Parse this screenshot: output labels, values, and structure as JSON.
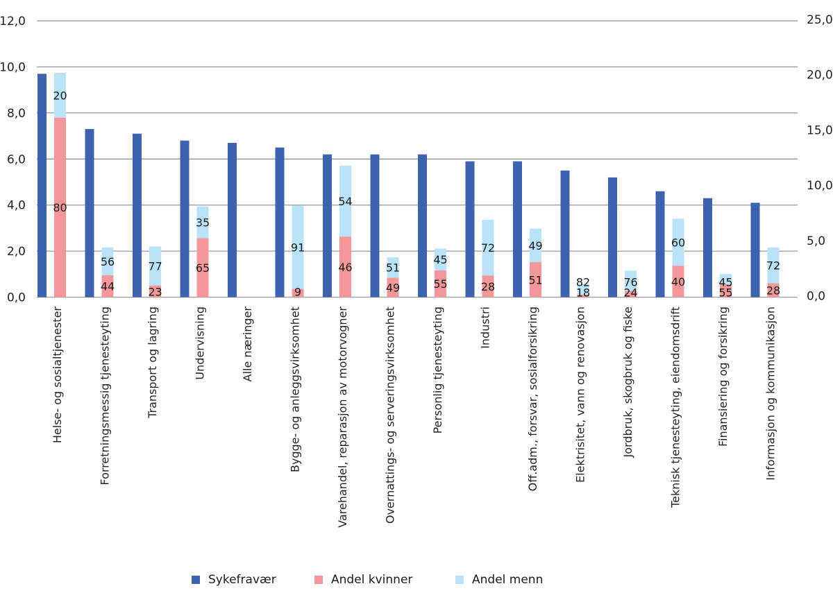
{
  "chart_data": {
    "type": "bar",
    "title": "",
    "xlabel": "",
    "ylabel": "",
    "ylabel_right": "",
    "grid": true,
    "legend_position": "bottom",
    "categories": [
      "Helse- og sosialtjenester",
      "Forretningsmessig tjenesteyting",
      "Transport og lagring",
      "Undervisning",
      "Alle næringer",
      "Bygge- og anleggsvirksomhet",
      "Varehandel, reparasjon av motorvogner",
      "Overnattings- og serveringsvirksomhet",
      "Personlig tjenesteyting",
      "Industri",
      "Off.adm., forsvar, sosialforsikring",
      "Elektrisitet, vann og renovasjon",
      "Jordbruk, skogbruk og fiske",
      "Teknisk tjenesteyting, eiendomsdrift",
      "Finansiering og forsikring",
      "Informasjon og kommunikasjon"
    ],
    "left_axis": {
      "ylim": [
        0,
        12
      ],
      "ticks": [
        "0,0",
        "2,0",
        "4,0",
        "6,0",
        "8,0",
        "10,0",
        "12,0"
      ],
      "tick_values": [
        0,
        2,
        4,
        6,
        8,
        10,
        12
      ]
    },
    "right_axis": {
      "ylim": [
        0,
        25
      ],
      "ticks": [
        "0,0",
        "5,0",
        "10,0",
        "15,0",
        "20,0",
        "25,0"
      ],
      "tick_values": [
        0,
        5,
        10,
        15,
        20,
        25
      ]
    },
    "series": [
      {
        "name": "Sykefravær",
        "axis": "left",
        "color": "#3d62ae",
        "values": [
          9.7,
          7.3,
          7.1,
          6.8,
          6.7,
          6.5,
          6.2,
          6.2,
          6.2,
          5.9,
          5.9,
          5.5,
          5.2,
          4.6,
          4.3,
          4.1
        ]
      },
      {
        "name": "Andel kvinner",
        "axis": "right",
        "stacked": true,
        "color": "#f4979a",
        "share_percent": [
          80,
          44,
          23,
          65,
          null,
          9,
          46,
          49,
          55,
          28,
          51,
          18,
          24,
          40,
          55,
          28
        ]
      },
      {
        "name": "Andel menn",
        "axis": "right",
        "stacked": true,
        "color": "#b8e3f8",
        "share_percent": [
          20,
          56,
          77,
          35,
          null,
          91,
          54,
          51,
          45,
          72,
          49,
          82,
          76,
          60,
          45,
          72
        ]
      }
    ],
    "stack_totals_right_axis": [
      20.3,
      4.5,
      4.6,
      8.2,
      null,
      8.3,
      11.9,
      3.6,
      4.4,
      7.0,
      6.2,
      1.2,
      2.4,
      7.1,
      2.1,
      4.5
    ]
  },
  "legend": [
    {
      "label": "Sykefravær",
      "color": "#3d62ae"
    },
    {
      "label": "Andel kvinner",
      "color": "#f4979a"
    },
    {
      "label": "Andel menn",
      "color": "#b8e3f8"
    }
  ]
}
